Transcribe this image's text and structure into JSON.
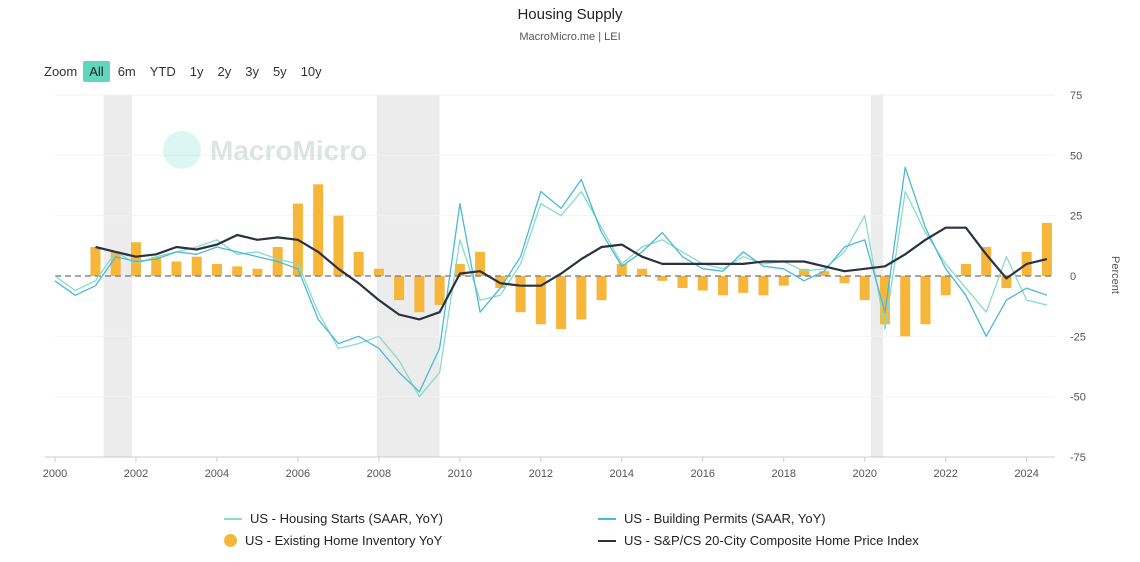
{
  "header": {
    "title": "Housing Supply",
    "subtitle": "MacroMicro.me | LEI"
  },
  "zoom": {
    "label": "Zoom",
    "options": [
      "All",
      "6m",
      "YTD",
      "1y",
      "2y",
      "3y",
      "5y",
      "10y"
    ],
    "selected": "All"
  },
  "watermark": "MacroMicro",
  "colors": {
    "starts": "#88dcc6",
    "permits": "#4bb9d6",
    "inventory": "#f6b63a",
    "price": "#2b3140",
    "recession": "#ececec",
    "zero": "#888888"
  },
  "chart_data": {
    "type": "line",
    "title": "Housing Supply",
    "subtitle": "MacroMicro.me | LEI",
    "ylabel": "Percent",
    "xlim": [
      2000,
      2024.7
    ],
    "ylim": [
      -75,
      75
    ],
    "x_ticks": [
      "2000",
      "2002",
      "2004",
      "2006",
      "2008",
      "2010",
      "2012",
      "2014",
      "2016",
      "2018",
      "2020",
      "2022",
      "2024"
    ],
    "y_ticks": [
      "75",
      "50",
      "25",
      "0",
      "-25",
      "-50",
      "-75"
    ],
    "recessions": [
      [
        2001.2,
        2001.9
      ],
      [
        2007.95,
        2009.5
      ],
      [
        2020.15,
        2020.45
      ]
    ],
    "legend": [
      "US - Housing Starts (SAAR, YoY)",
      "US - Building Permits (SAAR, YoY)",
      "US - Existing Home Inventory YoY",
      "US - S&P/CS 20-City Composite Home Price Index"
    ],
    "series": [
      {
        "name": "US - Housing Starts (SAAR, YoY)",
        "type": "line",
        "x": [
          2000,
          2000.5,
          2001,
          2001.5,
          2002,
          2002.5,
          2003,
          2003.5,
          2004,
          2004.5,
          2005,
          2005.5,
          2006,
          2006.5,
          2007,
          2007.5,
          2008,
          2008.5,
          2009,
          2009.5,
          2010,
          2010.5,
          2011,
          2011.5,
          2012,
          2012.5,
          2013,
          2013.5,
          2014,
          2014.5,
          2015,
          2015.5,
          2016,
          2016.5,
          2017,
          2017.5,
          2018,
          2018.5,
          2019,
          2019.5,
          2020,
          2020.5,
          2021,
          2021.5,
          2022,
          2022.5,
          2023,
          2023.5,
          2024,
          2024.5
        ],
        "values": [
          0,
          -6,
          -2,
          10,
          5,
          8,
          10,
          12,
          15,
          9,
          10,
          7,
          5,
          -15,
          -30,
          -28,
          -25,
          -35,
          -50,
          -40,
          15,
          -10,
          -8,
          5,
          30,
          25,
          35,
          20,
          5,
          12,
          15,
          10,
          5,
          3,
          8,
          5,
          6,
          2,
          3,
          10,
          25,
          -22,
          35,
          18,
          5,
          -5,
          -15,
          8,
          -10,
          -12
        ]
      },
      {
        "name": "US - Building Permits (SAAR, YoY)",
        "type": "line",
        "x": [
          2000,
          2000.5,
          2001,
          2001.5,
          2002,
          2002.5,
          2003,
          2003.5,
          2004,
          2004.5,
          2005,
          2005.5,
          2006,
          2006.5,
          2007,
          2007.5,
          2008,
          2008.5,
          2009,
          2009.5,
          2010,
          2010.5,
          2011,
          2011.5,
          2012,
          2012.5,
          2013,
          2013.5,
          2014,
          2014.5,
          2015,
          2015.5,
          2016,
          2016.5,
          2017,
          2017.5,
          2018,
          2018.5,
          2019,
          2019.5,
          2020,
          2020.5,
          2021,
          2021.5,
          2022,
          2022.5,
          2023,
          2023.5,
          2024,
          2024.5
        ],
        "values": [
          -2,
          -8,
          -4,
          8,
          6,
          7,
          10,
          9,
          12,
          10,
          8,
          6,
          3,
          -18,
          -28,
          -25,
          -30,
          -40,
          -48,
          -30,
          30,
          -15,
          -5,
          8,
          35,
          28,
          40,
          18,
          4,
          10,
          18,
          8,
          3,
          2,
          10,
          4,
          3,
          -2,
          2,
          12,
          15,
          -15,
          45,
          20,
          3,
          -8,
          -25,
          -10,
          -5,
          -8
        ]
      },
      {
        "name": "US - Existing Home Inventory YoY",
        "type": "bar",
        "x": [
          2001,
          2001.5,
          2002,
          2002.5,
          2003,
          2003.5,
          2004,
          2004.5,
          2005,
          2005.5,
          2006,
          2006.5,
          2007,
          2007.5,
          2008,
          2008.5,
          2009,
          2009.5,
          2010,
          2010.5,
          2011,
          2011.5,
          2012,
          2012.5,
          2013,
          2013.5,
          2014,
          2014.5,
          2015,
          2015.5,
          2016,
          2016.5,
          2017,
          2017.5,
          2018,
          2018.5,
          2019,
          2019.5,
          2020,
          2020.5,
          2021,
          2021.5,
          2022,
          2022.5,
          2023,
          2023.5,
          2024,
          2024.5
        ],
        "values": [
          12,
          10,
          14,
          8,
          6,
          8,
          5,
          4,
          3,
          12,
          30,
          38,
          25,
          10,
          3,
          -10,
          -15,
          -12,
          5,
          10,
          -5,
          -15,
          -20,
          -22,
          -18,
          -10,
          5,
          3,
          -2,
          -5,
          -6,
          -8,
          -7,
          -8,
          -4,
          3,
          2,
          -3,
          -10,
          -20,
          -25,
          -20,
          -8,
          5,
          12,
          -5,
          10,
          22
        ]
      },
      {
        "name": "US - S&P/CS 20-City Composite Home Price Index",
        "type": "line",
        "x": [
          2001,
          2001.5,
          2002,
          2002.5,
          2003,
          2003.5,
          2004,
          2004.5,
          2005,
          2005.5,
          2006,
          2006.5,
          2007,
          2007.5,
          2008,
          2008.5,
          2009,
          2009.5,
          2010,
          2010.5,
          2011,
          2011.5,
          2012,
          2012.5,
          2013,
          2013.5,
          2014,
          2014.5,
          2015,
          2015.5,
          2016,
          2016.5,
          2017,
          2017.5,
          2018,
          2018.5,
          2019,
          2019.5,
          2020,
          2020.5,
          2021,
          2021.5,
          2022,
          2022.5,
          2023,
          2023.5,
          2024,
          2024.5
        ],
        "values": [
          12,
          10,
          8,
          9,
          12,
          11,
          13,
          17,
          15,
          16,
          15,
          10,
          3,
          -3,
          -10,
          -16,
          -18,
          -15,
          1,
          2,
          -3,
          -4,
          -4,
          1,
          7,
          12,
          13,
          8,
          5,
          5,
          5,
          5,
          5,
          6,
          6,
          6,
          4,
          2,
          3,
          4,
          9,
          15,
          20,
          20,
          9,
          -1,
          5,
          7
        ]
      }
    ]
  }
}
